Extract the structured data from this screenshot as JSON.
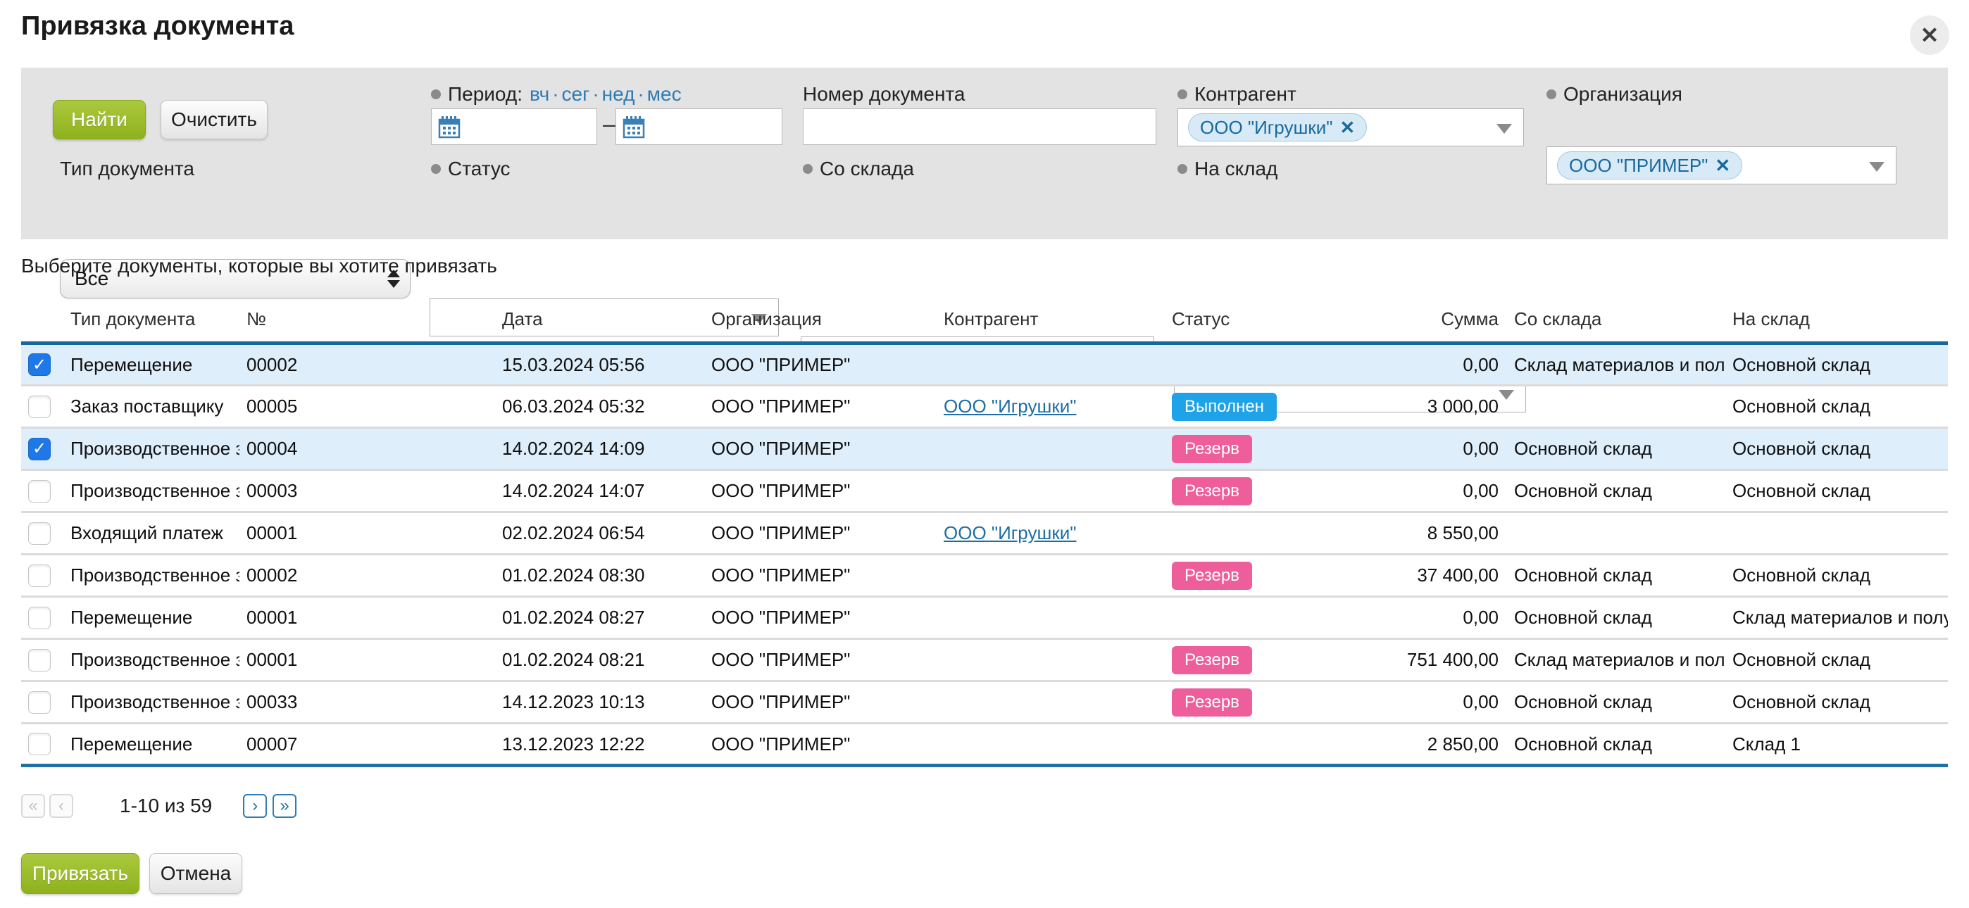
{
  "modal": {
    "title": "Привязка документа",
    "close_icon": "✕"
  },
  "colors": {
    "accent_green": "#96b427",
    "link_blue": "#1c6ea4",
    "badge_done": "#1ea2e8",
    "badge_reserve": "#ee5e9b",
    "header_border_blue": "#17689b",
    "selected_row": "#deeefa",
    "tag_text": "#17699e"
  },
  "filters": {
    "find_button": "Найти",
    "clear_button": "Очистить",
    "period": {
      "label": "Период:",
      "shortcuts": [
        "вч",
        "сег",
        "нед",
        "мес"
      ],
      "dot": "·",
      "separator": "–"
    },
    "doc_number_label": "Номер документа",
    "counterparty_label": "Контрагент",
    "counterparty_tag": "ООО \"Игрушки\"",
    "organization_label": "Организация",
    "organization_tag": "ООО \"ПРИМЕР\"",
    "doc_type_label": "Тип документа",
    "doc_type_value": "Все",
    "status_label": "Статус",
    "from_store_label": "Со склада",
    "to_store_label": "На склад",
    "remove_icon": "✕"
  },
  "hint": "Выберите документы, которые вы хотите привязать",
  "table": {
    "columns": [
      "Тип документа",
      "№",
      "Дата",
      "Организация",
      "Контрагент",
      "Статус",
      "Сумма",
      "Со склада",
      "На склад"
    ],
    "rows": [
      {
        "checked": true,
        "selected": true,
        "type": "Перемещение",
        "num": "00002",
        "date": "15.03.2024 05:56",
        "org": "ООО \"ПРИМЕР\"",
        "counterparty": "",
        "status": "",
        "status_style": "",
        "sum": "0,00",
        "from": "Склад материалов и полуфаб",
        "to": "Основной склад"
      },
      {
        "checked": false,
        "selected": false,
        "type": "Заказ поставщику",
        "num": "00005",
        "date": "06.03.2024 05:32",
        "org": "ООО \"ПРИМЕР\"",
        "counterparty": "ООО \"Игрушки\"",
        "status": "Выполнен",
        "status_style": "done",
        "sum": "3 000,00",
        "from": "",
        "to": "Основной склад"
      },
      {
        "checked": true,
        "selected": true,
        "type": "Производственное зад",
        "num": "00004",
        "date": "14.02.2024 14:09",
        "org": "ООО \"ПРИМЕР\"",
        "counterparty": "",
        "status": "Резерв",
        "status_style": "reserve",
        "sum": "0,00",
        "from": "Основной склад",
        "to": "Основной склад"
      },
      {
        "checked": false,
        "selected": false,
        "type": "Производственное зад",
        "num": "00003",
        "date": "14.02.2024 14:07",
        "org": "ООО \"ПРИМЕР\"",
        "counterparty": "",
        "status": "Резерв",
        "status_style": "reserve",
        "sum": "0,00",
        "from": "Основной склад",
        "to": "Основной склад"
      },
      {
        "checked": false,
        "selected": false,
        "type": "Входящий платеж",
        "num": "00001",
        "date": "02.02.2024 06:54",
        "org": "ООО \"ПРИМЕР\"",
        "counterparty": "ООО \"Игрушки\"",
        "status": "",
        "status_style": "",
        "sum": "8 550,00",
        "from": "",
        "to": ""
      },
      {
        "checked": false,
        "selected": false,
        "type": "Производственное зад",
        "num": "00002",
        "date": "01.02.2024 08:30",
        "org": "ООО \"ПРИМЕР\"",
        "counterparty": "",
        "status": "Резерв",
        "status_style": "reserve",
        "sum": "37 400,00",
        "from": "Основной склад",
        "to": "Основной склад"
      },
      {
        "checked": false,
        "selected": false,
        "type": "Перемещение",
        "num": "00001",
        "date": "01.02.2024 08:27",
        "org": "ООО \"ПРИМЕР\"",
        "counterparty": "",
        "status": "",
        "status_style": "",
        "sum": "0,00",
        "from": "Основной склад",
        "to": "Склад материалов и полуфаб"
      },
      {
        "checked": false,
        "selected": false,
        "type": "Производственное зад",
        "num": "00001",
        "date": "01.02.2024 08:21",
        "org": "ООО \"ПРИМЕР\"",
        "counterparty": "",
        "status": "Резерв",
        "status_style": "reserve",
        "sum": "751 400,00",
        "from": "Склад материалов и полуфаб",
        "to": "Основной склад"
      },
      {
        "checked": false,
        "selected": false,
        "type": "Производственное зад",
        "num": "00033",
        "date": "14.12.2023 10:13",
        "org": "ООО \"ПРИМЕР\"",
        "counterparty": "",
        "status": "Резерв",
        "status_style": "reserve",
        "sum": "0,00",
        "from": "Основной склад",
        "to": "Основной склад"
      },
      {
        "checked": false,
        "selected": false,
        "type": "Перемещение",
        "num": "00007",
        "date": "13.12.2023 12:22",
        "org": "ООО \"ПРИМЕР\"",
        "counterparty": "",
        "status": "",
        "status_style": "",
        "sum": "2 850,00",
        "from": "Основной склад",
        "to": "Склад 1"
      }
    ]
  },
  "pagination": {
    "first_label": "«",
    "prev_label": "‹",
    "range_label": "1-10 из 59",
    "next_label": "›",
    "last_label": "»"
  },
  "footer": {
    "bind_button": "Привязать",
    "cancel_button": "Отмена"
  }
}
